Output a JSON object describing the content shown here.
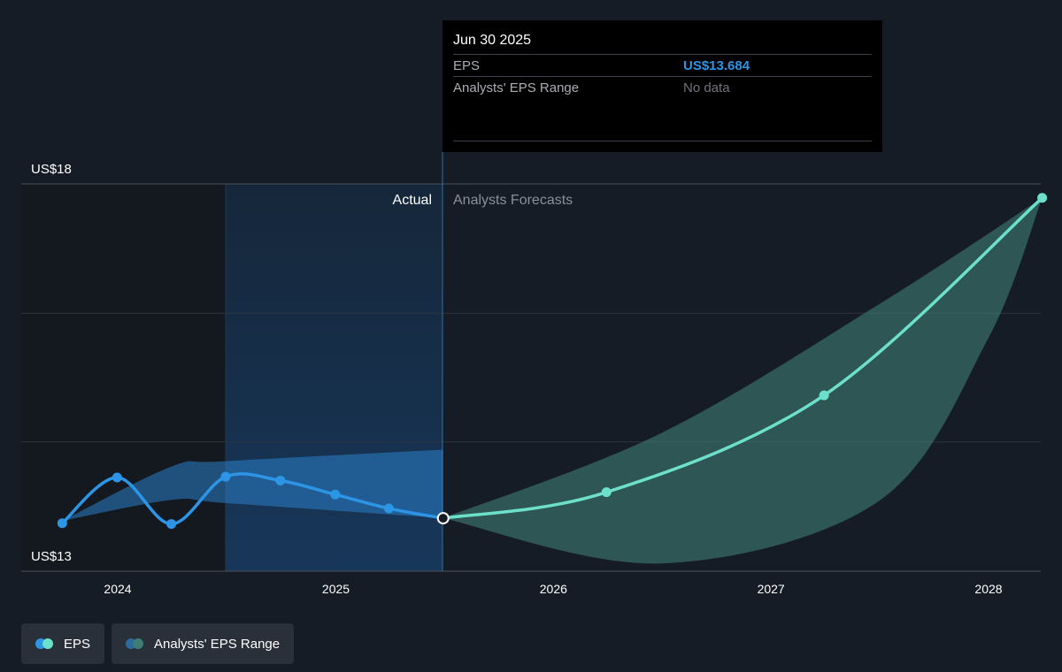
{
  "chart_data": {
    "type": "line",
    "y_axis": {
      "min": 13,
      "max": 18,
      "top_label": "US$18",
      "bottom_label": "US$13"
    },
    "x_ticks": [
      "2024",
      "2025",
      "2026",
      "2027",
      "2028"
    ],
    "periods": {
      "actual_label": "Actual",
      "forecast_label": "Analysts Forecasts"
    },
    "series": [
      {
        "name": "EPS",
        "kind": "actual",
        "color": "#2d95e6",
        "points": [
          {
            "x": "2023-09-30",
            "y": 13.62
          },
          {
            "x": "2023-12-31",
            "y": 14.21
          },
          {
            "x": "2024-03-31",
            "y": 13.61
          },
          {
            "x": "2024-06-30",
            "y": 14.22
          },
          {
            "x": "2024-09-30",
            "y": 14.17
          },
          {
            "x": "2024-12-31",
            "y": 13.99
          },
          {
            "x": "2025-03-31",
            "y": 13.81
          },
          {
            "x": "2025-06-30",
            "y": 13.684
          }
        ]
      },
      {
        "name": "EPS",
        "kind": "forecast",
        "color": "#6de0cc",
        "points": [
          {
            "x": "2025-06-30",
            "y": 13.684
          },
          {
            "x": "2026-03-31",
            "y": 14.02
          },
          {
            "x": "2027-03-31",
            "y": 15.27
          },
          {
            "x": "2028-03-31",
            "y": 17.82
          }
        ]
      }
    ],
    "range_bands": [
      {
        "name": "Analysts' EPS Range",
        "kind": "actual",
        "color": "#2a7fc8",
        "upper": [
          {
            "x": "2023-09-30",
            "y": 13.65
          },
          {
            "x": "2024-03-31",
            "y": 14.35
          },
          {
            "x": "2024-06-30",
            "y": 14.42
          },
          {
            "x": "2025-06-30",
            "y": 14.57
          }
        ],
        "lower": [
          {
            "x": "2023-09-30",
            "y": 13.65
          },
          {
            "x": "2024-03-31",
            "y": 13.92
          },
          {
            "x": "2024-06-30",
            "y": 13.88
          },
          {
            "x": "2025-06-30",
            "y": 13.684
          }
        ]
      },
      {
        "name": "Analysts' EPS Range",
        "kind": "forecast",
        "color": "#3d7d76",
        "upper": [
          {
            "x": "2025-06-30",
            "y": 13.684
          },
          {
            "x": "2026-06-30",
            "y": 14.78
          },
          {
            "x": "2027-06-30",
            "y": 16.44
          },
          {
            "x": "2028-03-31",
            "y": 17.82
          }
        ],
        "lower": [
          {
            "x": "2025-06-30",
            "y": 13.684
          },
          {
            "x": "2026-06-30",
            "y": 13.1
          },
          {
            "x": "2027-06-30",
            "y": 13.9
          },
          {
            "x": "2027-12-31",
            "y": 16.0
          },
          {
            "x": "2028-03-31",
            "y": 17.82
          }
        ]
      }
    ],
    "highlight_point": {
      "x": "2025-06-30",
      "y": 13.684
    },
    "grid": true
  },
  "tooltip": {
    "date": "Jun 30 2025",
    "rows": [
      {
        "label": "EPS",
        "value": "US$13.684",
        "color": "#2d95e6"
      },
      {
        "label": "Analysts' EPS Range",
        "value": "No data",
        "color": "#6f747c"
      }
    ]
  },
  "legend": [
    {
      "label": "EPS",
      "colors": [
        "#2d95e6",
        "#6de0cc"
      ]
    },
    {
      "label": "Analysts' EPS Range",
      "colors": [
        "#2a6a9c",
        "#3d7d76"
      ]
    }
  ]
}
